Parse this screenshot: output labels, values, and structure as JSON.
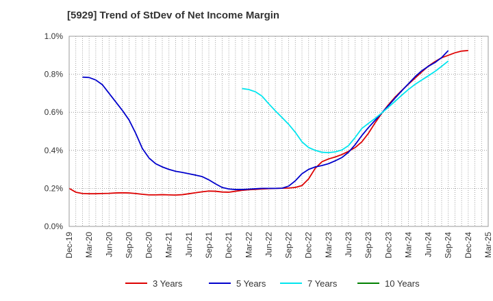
{
  "chart_data": {
    "type": "line",
    "title": "[5929]  Trend of StDev of Net Income Margin",
    "y_ticks": [
      "0.0%",
      "0.2%",
      "0.4%",
      "0.6%",
      "0.8%",
      "1.0%"
    ],
    "ylim": [
      0,
      1.0
    ],
    "x_ticks": [
      "Dec-19",
      "Mar-20",
      "Jun-20",
      "Sep-20",
      "Dec-20",
      "Mar-21",
      "Jun-21",
      "Sep-21",
      "Dec-21",
      "Mar-22",
      "Jun-22",
      "Sep-22",
      "Dec-22",
      "Mar-23",
      "Jun-23",
      "Sep-23",
      "Dec-23",
      "Mar-24",
      "Jun-24",
      "Sep-24",
      "Dec-24",
      "Mar-25"
    ],
    "grid": true,
    "legend_position": "bottom",
    "series": [
      {
        "name": "3 Years",
        "color": "#dd0000",
        "start_index": 0,
        "values": [
          0.2,
          0.18,
          0.173,
          0.172,
          0.172,
          0.173,
          0.174,
          0.176,
          0.177,
          0.176,
          0.173,
          0.169,
          0.166,
          0.166,
          0.167,
          0.166,
          0.165,
          0.167,
          0.172,
          0.177,
          0.182,
          0.186,
          0.185,
          0.181,
          0.18,
          0.185,
          0.19,
          0.193,
          0.195,
          0.197,
          0.199,
          0.2,
          0.201,
          0.202,
          0.205,
          0.215,
          0.25,
          0.306,
          0.34,
          0.355,
          0.365,
          0.378,
          0.395,
          0.415,
          0.445,
          0.49,
          0.545,
          0.595,
          0.64,
          0.68,
          0.715,
          0.748,
          0.78,
          0.812,
          0.843,
          0.867,
          0.887,
          0.9,
          0.913,
          0.922,
          0.925
        ]
      },
      {
        "name": "5 Years",
        "color": "#0000cc",
        "start_index": 2,
        "values": [
          0.785,
          0.783,
          0.77,
          0.745,
          0.7,
          0.655,
          0.61,
          0.56,
          0.49,
          0.41,
          0.36,
          0.33,
          0.313,
          0.3,
          0.29,
          0.284,
          0.277,
          0.27,
          0.262,
          0.245,
          0.224,
          0.205,
          0.197,
          0.194,
          0.194,
          0.196,
          0.198,
          0.2,
          0.2,
          0.2,
          0.201,
          0.212,
          0.24,
          0.277,
          0.3,
          0.313,
          0.32,
          0.33,
          0.345,
          0.362,
          0.39,
          0.43,
          0.478,
          0.52,
          0.558,
          0.597,
          0.635,
          0.675,
          0.713,
          0.75,
          0.787,
          0.818,
          0.842,
          0.862,
          0.888,
          0.925
        ]
      },
      {
        "name": "7 Years",
        "color": "#00e5ee",
        "start_index": 26,
        "values": [
          0.725,
          0.72,
          0.708,
          0.685,
          0.645,
          0.608,
          0.573,
          0.537,
          0.495,
          0.445,
          0.415,
          0.4,
          0.39,
          0.388,
          0.392,
          0.402,
          0.425,
          0.468,
          0.515,
          0.542,
          0.568,
          0.597,
          0.627,
          0.658,
          0.69,
          0.72,
          0.747,
          0.77,
          0.792,
          0.815,
          0.842,
          0.87
        ]
      },
      {
        "name": "10 Years",
        "color": "#008000",
        "start_index": 0,
        "values": []
      }
    ]
  }
}
